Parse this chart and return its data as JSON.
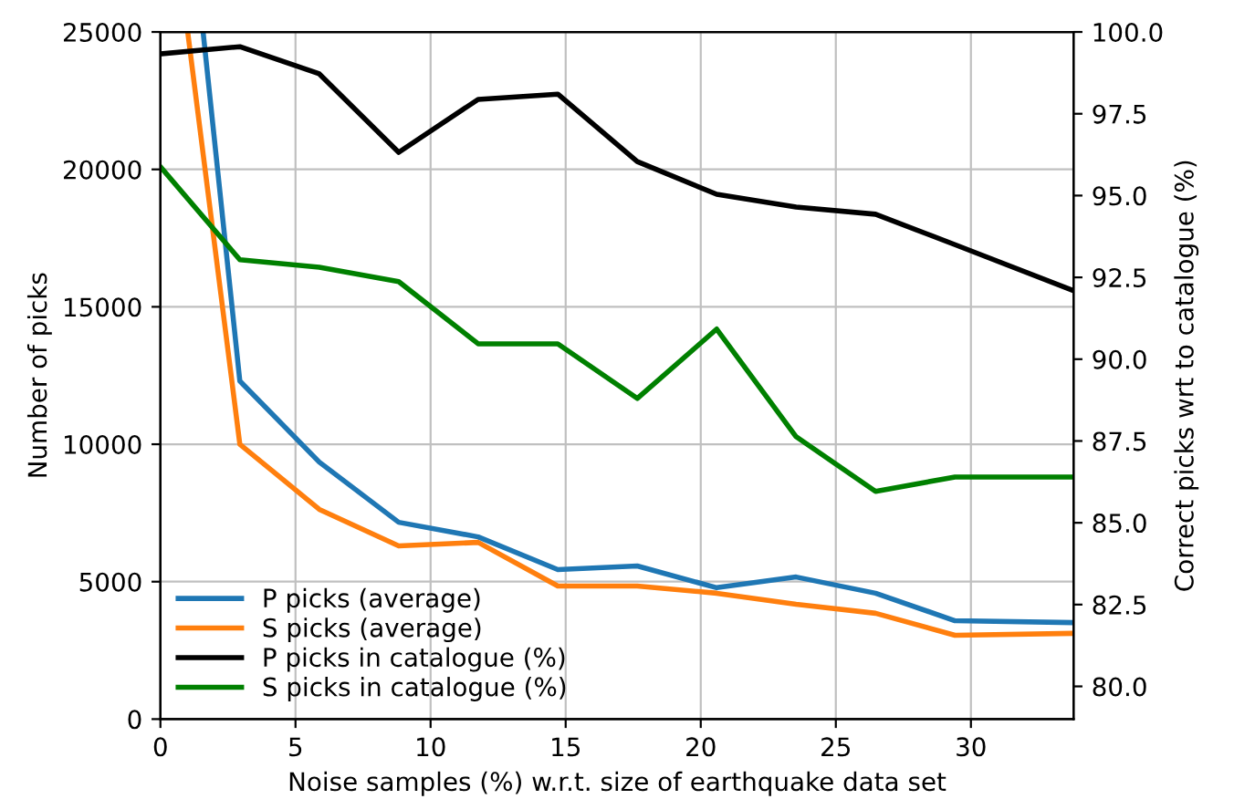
{
  "chart_data": {
    "type": "line",
    "xlabel": "Noise samples (%) w.r.t. size of earthquake data set",
    "ylabel": "Number of picks",
    "y2label": "Correct picks wrt to catalogue (%)",
    "x": [
      0,
      2.94,
      5.88,
      8.82,
      11.76,
      14.71,
      17.65,
      20.59,
      23.53,
      26.47,
      29.41,
      33.8
    ],
    "xlim": [
      0,
      33.8
    ],
    "xticks": [
      0,
      5,
      10,
      15,
      20,
      25,
      30
    ],
    "ylim": [
      0,
      25000
    ],
    "yticks": [
      0,
      5000,
      10000,
      15000,
      20000,
      25000
    ],
    "y2lim": [
      79,
      100
    ],
    "y2ticks": [
      {
        "value": 80,
        "label": "80.0"
      },
      {
        "value": 82.5,
        "label": "82.5"
      },
      {
        "value": 85,
        "label": "85.0"
      },
      {
        "value": 87.5,
        "label": "87.5"
      },
      {
        "value": 90,
        "label": "90.0"
      },
      {
        "value": 92.5,
        "label": "92.5"
      },
      {
        "value": 95,
        "label": "95.0"
      },
      {
        "value": 97.5,
        "label": "97.5"
      },
      {
        "value": 100,
        "label": "100.0"
      }
    ],
    "series": [
      {
        "name": "P picks (average)",
        "color": "#1f77b4",
        "x": [
          1.58,
          2.94,
          5.88,
          8.82,
          11.76,
          14.71,
          17.65,
          20.59,
          23.53,
          26.47,
          29.41,
          33.8
        ],
        "values": [
          25000,
          12300,
          9350,
          7160,
          6630,
          5440,
          5570,
          4780,
          5170,
          4580,
          3580,
          3510
        ]
      },
      {
        "name": "S picks (average)",
        "color": "#ff7f0e",
        "x": [
          1.01,
          2.94,
          5.88,
          8.82,
          11.76,
          14.71,
          17.65,
          20.59,
          23.53,
          26.47,
          29.41,
          33.8
        ],
        "values": [
          25000,
          10000,
          7630,
          6300,
          6430,
          4840,
          4840,
          4580,
          4180,
          3850,
          3050,
          3120
        ]
      },
      {
        "name": "P picks in catalogue (%)",
        "color": "#000000",
        "axis": "y2",
        "values": [
          99.33,
          99.55,
          98.72,
          96.32,
          97.94,
          98.1,
          96.04,
          95.04,
          94.65,
          94.43,
          93.5,
          92.09
        ]
      },
      {
        "name": "S picks in catalogue (%)",
        "color": "#008000",
        "axis": "y2",
        "values": [
          95.88,
          93.04,
          92.81,
          92.37,
          90.47,
          90.47,
          88.8,
          90.92,
          87.63,
          85.96,
          86.4,
          86.4
        ]
      }
    ],
    "grid": true,
    "legend": "bottom left",
    "marker": "none",
    "line_style": "solid"
  }
}
